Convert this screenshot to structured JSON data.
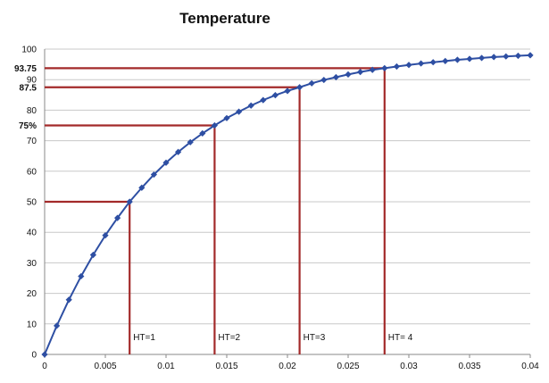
{
  "chart_data": {
    "type": "line",
    "title": "Temperature",
    "xlabel": "",
    "ylabel": "",
    "xlim": [
      0,
      0.04
    ],
    "ylim": [
      0,
      100
    ],
    "grid": true,
    "legend": "none",
    "x_ticks": [
      "0",
      "0.005",
      "0.01",
      "0.015",
      "0.02",
      "0.025",
      "0.03",
      "0.035",
      "0.04"
    ],
    "y_ticks": [
      "0",
      "10",
      "20",
      "30",
      "40",
      "50",
      "60",
      "70",
      "80",
      "90",
      "100"
    ],
    "series": [
      {
        "color": "#2e4fa3",
        "marker": "diamond",
        "x": [
          0,
          0.001,
          0.002,
          0.003,
          0.004,
          0.005,
          0.006,
          0.007,
          0.008,
          0.009,
          0.01,
          0.011,
          0.012,
          0.013,
          0.014,
          0.015,
          0.016,
          0.017,
          0.018,
          0.019,
          0.02,
          0.021,
          0.022,
          0.023,
          0.024,
          0.025,
          0.026,
          0.027,
          0.028,
          0.029,
          0.03,
          0.031,
          0.032,
          0.033,
          0.034,
          0.035,
          0.036,
          0.037,
          0.038,
          0.039,
          0.04
        ],
        "y": [
          0,
          9.4,
          17.9,
          25.6,
          32.6,
          39.0,
          44.7,
          50.0,
          54.6,
          58.9,
          62.8,
          66.3,
          69.5,
          72.4,
          75.0,
          77.4,
          79.5,
          81.5,
          83.3,
          84.9,
          86.3,
          87.5,
          88.8,
          89.9,
          90.8,
          91.7,
          92.5,
          93.2,
          93.75,
          94.3,
          94.8,
          95.3,
          95.7,
          96.1,
          96.5,
          96.8,
          97.1,
          97.4,
          97.6,
          97.8,
          98.0
        ]
      }
    ],
    "markers": [
      {
        "x": 0.007,
        "y": 50,
        "label": "HT=1",
        "y_label": "50"
      },
      {
        "x": 0.014,
        "y": 75,
        "label": "HT=2",
        "y_label": "75%"
      },
      {
        "x": 0.021,
        "y": 87.5,
        "label": "HT=3",
        "y_label": "87.5"
      },
      {
        "x": 0.028,
        "y": 93.75,
        "label": "HT= 4",
        "y_label": "93.75"
      }
    ],
    "marker_color": "#a32a2a"
  }
}
